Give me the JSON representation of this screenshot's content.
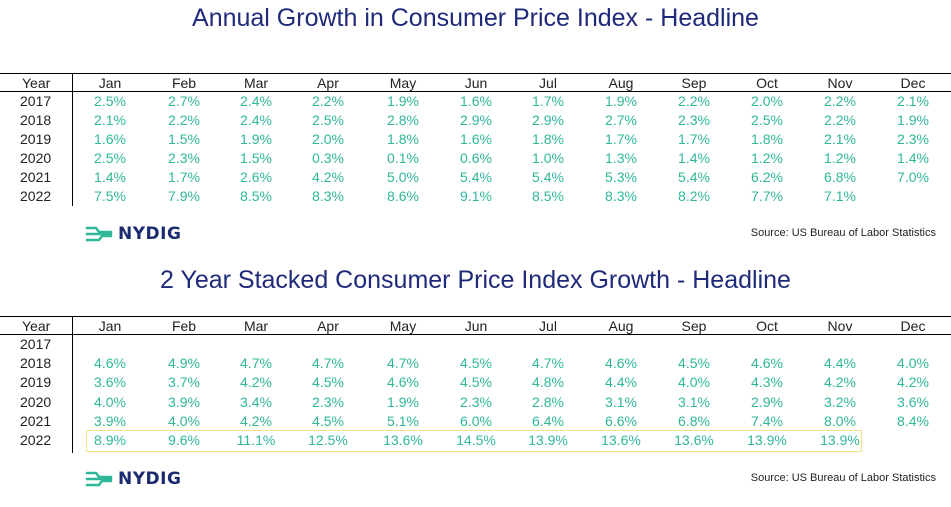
{
  "brand": {
    "name": "NYDIG",
    "source": "Source: US Bureau of Labor Statistics"
  },
  "chart_data": [
    {
      "type": "table",
      "title": "Annual Growth in Consumer Price Index - Headline",
      "row_header": "Year",
      "columns": [
        "Jan",
        "Feb",
        "Mar",
        "Apr",
        "May",
        "Jun",
        "Jul",
        "Aug",
        "Sep",
        "Oct",
        "Nov",
        "Dec"
      ],
      "rows": [
        {
          "year": "2017",
          "values": [
            "2.5%",
            "2.7%",
            "2.4%",
            "2.2%",
            "1.9%",
            "1.6%",
            "1.7%",
            "1.9%",
            "2.2%",
            "2.0%",
            "2.2%",
            "2.1%"
          ]
        },
        {
          "year": "2018",
          "values": [
            "2.1%",
            "2.2%",
            "2.4%",
            "2.5%",
            "2.8%",
            "2.9%",
            "2.9%",
            "2.7%",
            "2.3%",
            "2.5%",
            "2.2%",
            "1.9%"
          ]
        },
        {
          "year": "2019",
          "values": [
            "1.6%",
            "1.5%",
            "1.9%",
            "2.0%",
            "1.8%",
            "1.6%",
            "1.8%",
            "1.7%",
            "1.7%",
            "1.8%",
            "2.1%",
            "2.3%"
          ]
        },
        {
          "year": "2020",
          "values": [
            "2.5%",
            "2.3%",
            "1.5%",
            "0.3%",
            "0.1%",
            "0.6%",
            "1.0%",
            "1.3%",
            "1.4%",
            "1.2%",
            "1.2%",
            "1.4%"
          ]
        },
        {
          "year": "2021",
          "values": [
            "1.4%",
            "1.7%",
            "2.6%",
            "4.2%",
            "5.0%",
            "5.4%",
            "5.4%",
            "5.3%",
            "5.4%",
            "6.2%",
            "6.8%",
            "7.0%"
          ]
        },
        {
          "year": "2022",
          "values": [
            "7.5%",
            "7.9%",
            "8.5%",
            "8.3%",
            "8.6%",
            "9.1%",
            "8.5%",
            "8.3%",
            "8.2%",
            "7.7%",
            "7.1%",
            ""
          ]
        }
      ]
    },
    {
      "type": "table",
      "title": "2 Year Stacked Consumer Price Index Growth - Headline",
      "row_header": "Year",
      "columns": [
        "Jan",
        "Feb",
        "Mar",
        "Apr",
        "May",
        "Jun",
        "Jul",
        "Aug",
        "Sep",
        "Oct",
        "Nov",
        "Dec"
      ],
      "highlight_row": "2022",
      "rows": [
        {
          "year": "2017",
          "values": [
            "",
            "",
            "",
            "",
            "",
            "",
            "",
            "",
            "",
            "",
            "",
            ""
          ]
        },
        {
          "year": "2018",
          "values": [
            "4.6%",
            "4.9%",
            "4.7%",
            "4.7%",
            "4.7%",
            "4.5%",
            "4.7%",
            "4.6%",
            "4.5%",
            "4.6%",
            "4.4%",
            "4.0%"
          ]
        },
        {
          "year": "2019",
          "values": [
            "3.6%",
            "3.7%",
            "4.2%",
            "4.5%",
            "4.6%",
            "4.5%",
            "4.8%",
            "4.4%",
            "4.0%",
            "4.3%",
            "4.2%",
            "4.2%"
          ]
        },
        {
          "year": "2020",
          "values": [
            "4.0%",
            "3.9%",
            "3.4%",
            "2.3%",
            "1.9%",
            "2.3%",
            "2.8%",
            "3.1%",
            "3.1%",
            "2.9%",
            "3.2%",
            "3.6%"
          ]
        },
        {
          "year": "2021",
          "values": [
            "3.9%",
            "4.0%",
            "4.2%",
            "4.5%",
            "5.1%",
            "6.0%",
            "6.4%",
            "6.6%",
            "6.8%",
            "7.4%",
            "8.0%",
            "8.4%"
          ]
        },
        {
          "year": "2022",
          "values": [
            "8.9%",
            "9.6%",
            "11.1%",
            "12.5%",
            "13.6%",
            "14.5%",
            "13.9%",
            "13.6%",
            "13.6%",
            "13.9%",
            "13.9%",
            ""
          ]
        }
      ]
    }
  ]
}
